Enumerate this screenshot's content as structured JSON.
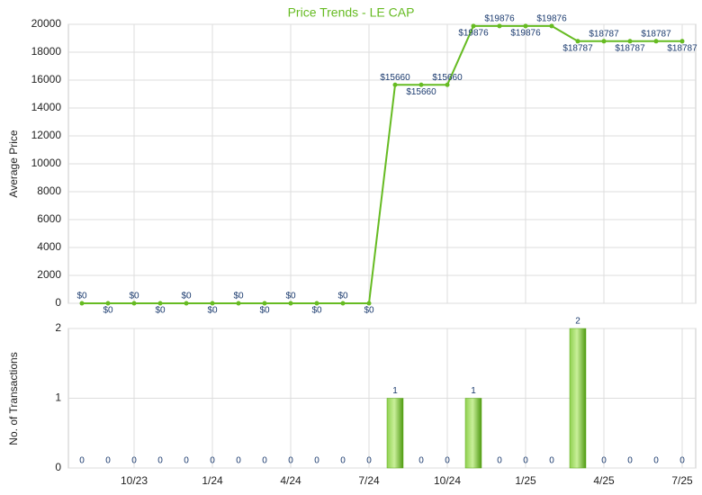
{
  "chart_data": [
    {
      "type": "line",
      "title": "Price Trends - LE CAP",
      "y_label": "Average Price",
      "color": "#66bb22",
      "values": [
        0,
        0,
        0,
        0,
        0,
        0,
        0,
        0,
        0,
        0,
        0,
        0,
        15660,
        15660,
        15660,
        19876,
        19876,
        19876,
        19876,
        18787,
        18787,
        18787,
        18787,
        18787
      ],
      "value_labels": [
        "$0",
        "$0",
        "$0",
        "$0",
        "$0",
        "$0",
        "$0",
        "$0",
        "$0",
        "$0",
        "$0",
        "$0",
        "$15660",
        "$15660",
        "$15660",
        "$19876",
        "$19876",
        "$19876",
        "$19876",
        "$18787",
        "$18787",
        "$18787",
        "$18787",
        "$18787"
      ],
      "ylim": [
        0,
        20000
      ],
      "yticks": [
        0,
        2000,
        4000,
        6000,
        8000,
        10000,
        12000,
        14000,
        16000,
        18000,
        20000
      ],
      "grid": true
    },
    {
      "type": "bar",
      "y_label": "No. of Transactions",
      "color": "#5aaa18",
      "categories": [
        null,
        null,
        "10/23",
        null,
        null,
        "1/24",
        null,
        null,
        "4/24",
        null,
        null,
        "7/24",
        null,
        null,
        "10/24",
        null,
        null,
        "1/25",
        null,
        null,
        "4/25",
        null,
        null,
        "7/25"
      ],
      "values": [
        0,
        0,
        0,
        0,
        0,
        0,
        0,
        0,
        0,
        0,
        0,
        0,
        1,
        0,
        0,
        1,
        0,
        0,
        0,
        2,
        0,
        0,
        0,
        0
      ],
      "ylim": [
        0,
        2
      ],
      "yticks": [
        0,
        1,
        2
      ],
      "grid": true
    }
  ]
}
